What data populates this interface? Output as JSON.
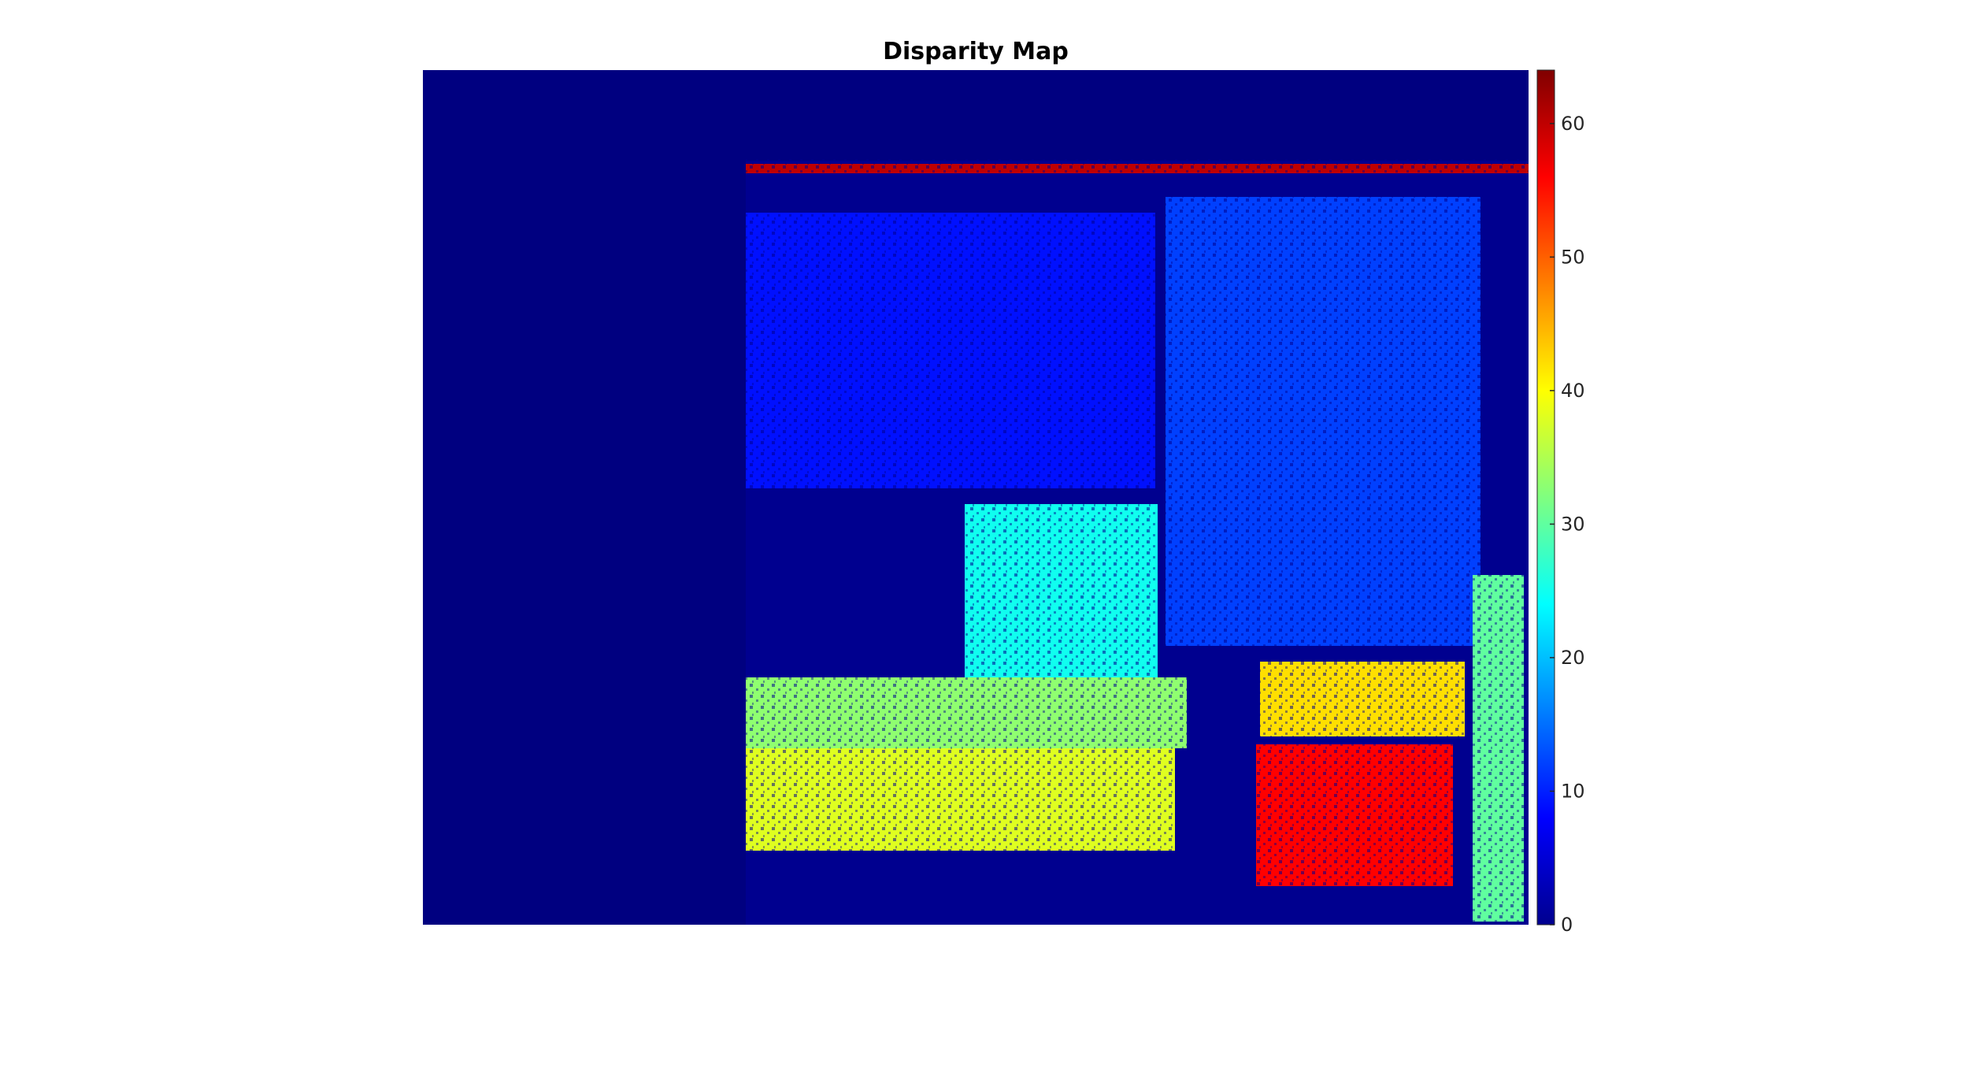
{
  "chart_data": {
    "type": "heatmap",
    "title": "Disparity Map",
    "xlabel": "",
    "ylabel": "",
    "colormap": "jet",
    "clim": [
      0,
      64
    ],
    "colorbar": {
      "location": "right",
      "ticks": [
        0,
        10,
        20,
        30,
        40,
        50,
        60
      ],
      "tick_labels": [
        "0",
        "10",
        "20",
        "30",
        "40",
        "50",
        "60"
      ]
    },
    "invalid_region_value": 0,
    "regions": [
      {
        "name": "left-invalid-band",
        "value": 0
      },
      {
        "name": "top-invalid-band",
        "value": 0
      },
      {
        "name": "top-noisy-strip",
        "value": 60
      },
      {
        "name": "background-wall",
        "value": 9
      },
      {
        "name": "right-wall",
        "value": 12
      },
      {
        "name": "middle-box",
        "value": 25
      },
      {
        "name": "floor-near",
        "value": 33
      },
      {
        "name": "floor-mid",
        "value": 38
      },
      {
        "name": "right-object",
        "value": 42
      },
      {
        "name": "right-object-base",
        "value": 56
      },
      {
        "name": "right-edge-strip",
        "value": 30
      }
    ]
  }
}
